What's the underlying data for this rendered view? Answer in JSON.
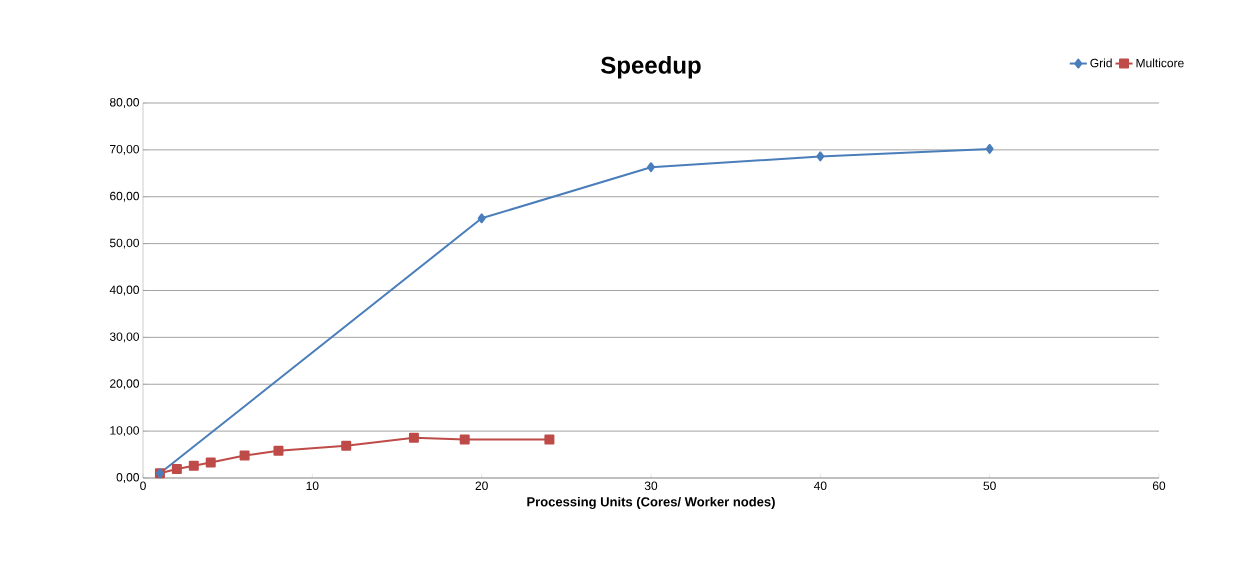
{
  "chart_data": {
    "type": "line",
    "title": "Speedup",
    "xlabel": "Processing Units (Cores/ Worker nodes)",
    "series": [
      {
        "name": "Grid",
        "color": "#4a7ebb",
        "marker": "diamond",
        "x": [
          1,
          20,
          30,
          40,
          50
        ],
        "values": [
          1,
          55.4,
          66.3,
          68.6,
          70.2
        ]
      },
      {
        "name": "Multicore",
        "color": "#be4b48",
        "marker": "square",
        "x": [
          1,
          2,
          3,
          4,
          6,
          8,
          12,
          16,
          19,
          24
        ],
        "values": [
          1,
          1.9,
          2.6,
          3.3,
          4.8,
          5.8,
          6.9,
          8.6,
          8.2,
          8.2
        ]
      }
    ],
    "xlim": [
      0,
      60
    ],
    "xticks": [
      0,
      10,
      20,
      30,
      40,
      50,
      60
    ],
    "ylim": [
      0,
      80
    ],
    "yticks": [
      {
        "value": 0,
        "label": "0,00"
      },
      {
        "value": 10,
        "label": "10,00"
      },
      {
        "value": 20,
        "label": "20,00"
      },
      {
        "value": 30,
        "label": "30,00"
      },
      {
        "value": 40,
        "label": "40,00"
      },
      {
        "value": 50,
        "label": "50,00"
      },
      {
        "value": 60,
        "label": "60,00"
      },
      {
        "value": 70,
        "label": "70,00"
      },
      {
        "value": 80,
        "label": "80,00"
      }
    ],
    "grid": "y",
    "legend": "top right",
    "line_style": "solid"
  }
}
